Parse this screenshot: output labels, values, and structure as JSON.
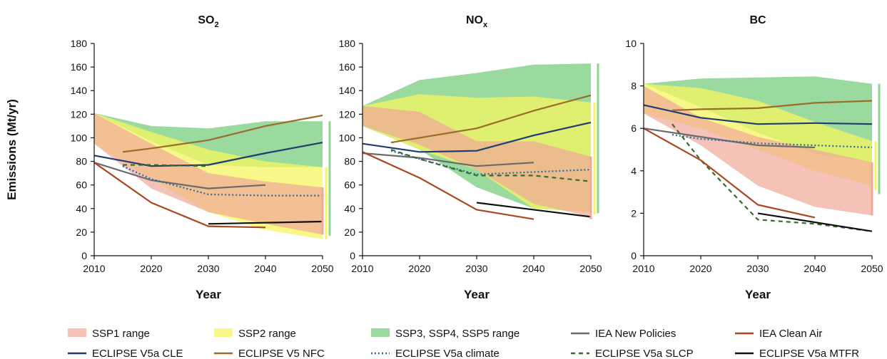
{
  "figure": {
    "ylabel": "Emissions (Mt/yr)",
    "xlabel": "Year"
  },
  "legend": [
    {
      "key": "ssp1",
      "label": "SSP1 range",
      "kind": "patch",
      "color": "#f0a898"
    },
    {
      "key": "ssp2",
      "label": "SSP2 range",
      "kind": "patch",
      "color": "#f5f560"
    },
    {
      "key": "ssp345",
      "label": "SSP3, SSP4, SSP5 range",
      "kind": "patch",
      "color": "#8fd694"
    },
    {
      "key": "iea_np",
      "label": "IEA New Policies",
      "kind": "line",
      "color": "#6b6b6b",
      "dash": "solid"
    },
    {
      "key": "iea_ca",
      "label": "IEA Clean Air",
      "kind": "line",
      "color": "#a9471f",
      "dash": "solid"
    },
    {
      "key": "clE",
      "label": "ECLIPSE V5a CLE",
      "kind": "line",
      "color": "#1f3d73",
      "dash": "solid"
    },
    {
      "key": "nfc",
      "label": "ECLIPSE V5 NFC",
      "kind": "line",
      "color": "#9a6d2a",
      "dash": "solid"
    },
    {
      "key": "climate",
      "label": "ECLIPSE V5a climate",
      "kind": "line",
      "color": "#2b6aa0",
      "dash": "dotted"
    },
    {
      "key": "slcp",
      "label": "ECLIPSE V5a SLCP",
      "kind": "line",
      "color": "#3a6b2c",
      "dash": "dashed"
    },
    {
      "key": "mtfr",
      "label": "ECLIPSE V5a MTFR",
      "kind": "line",
      "color": "#111111",
      "dash": "solid"
    }
  ],
  "chart_data": [
    {
      "type": "line",
      "title_main": "SO",
      "title_sub": "2",
      "xlim": [
        2010,
        2050
      ],
      "ylim": [
        0,
        180
      ],
      "xticks": [
        2010,
        2020,
        2030,
        2040,
        2050
      ],
      "yticks": [
        0,
        20,
        40,
        60,
        80,
        100,
        120,
        140,
        160,
        180
      ],
      "bands": [
        {
          "key": "ssp345",
          "x": [
            2010,
            2020,
            2030,
            2040,
            2050
          ],
          "upper": [
            121,
            110,
            108,
            114,
            114
          ],
          "lower": [
            121,
            97,
            77,
            75,
            75
          ]
        },
        {
          "key": "ssp2",
          "x": [
            2010,
            2020,
            2030,
            2040,
            2050
          ],
          "upper": [
            121,
            105,
            90,
            80,
            75
          ],
          "lower": [
            95,
            65,
            37,
            22,
            14
          ]
        },
        {
          "key": "ssp1",
          "x": [
            2010,
            2020,
            2030,
            2040,
            2050
          ],
          "upper": [
            121,
            95,
            70,
            63,
            58
          ],
          "lower": [
            95,
            57,
            37,
            27,
            18
          ]
        }
      ],
      "range_bars": [
        {
          "key": "ssp345",
          "top": 114,
          "bottom": 17
        },
        {
          "key": "ssp2",
          "top": 75,
          "bottom": 14
        },
        {
          "key": "ssp1",
          "top": 58,
          "bottom": 18
        }
      ],
      "series": [
        {
          "key": "clE",
          "x": [
            2010,
            2020,
            2030,
            2040,
            2050
          ],
          "y": [
            85,
            76,
            77,
            87,
            96
          ]
        },
        {
          "key": "nfc",
          "x": [
            2015,
            2020,
            2030,
            2040,
            2050
          ],
          "y": [
            88,
            91,
            98,
            110,
            119
          ]
        },
        {
          "key": "iea_np",
          "x": [
            2010,
            2020,
            2030,
            2040
          ],
          "y": [
            79,
            64,
            57,
            60
          ]
        },
        {
          "key": "climate",
          "x": [
            2015,
            2020,
            2030,
            2040,
            2050
          ],
          "y": [
            76,
            65,
            52,
            51,
            51
          ]
        },
        {
          "key": "slcp",
          "x": [
            2015,
            2020,
            2030
          ],
          "y": [
            77,
            77,
            76
          ]
        },
        {
          "key": "iea_ca",
          "x": [
            2010,
            2020,
            2030,
            2040
          ],
          "y": [
            79,
            45,
            25,
            24
          ]
        },
        {
          "key": "mtfr",
          "x": [
            2030,
            2050
          ],
          "y": [
            27,
            29
          ]
        }
      ]
    },
    {
      "type": "line",
      "title_main": "NO",
      "title_sub": "x",
      "xlim": [
        2010,
        2050
      ],
      "ylim": [
        0,
        180
      ],
      "xticks": [
        2010,
        2020,
        2030,
        2040,
        2050
      ],
      "yticks": [
        0,
        20,
        40,
        60,
        80,
        100,
        120,
        140,
        160,
        180
      ],
      "bands": [
        {
          "key": "ssp345",
          "x": [
            2010,
            2020,
            2030,
            2040,
            2050
          ],
          "upper": [
            127,
            149,
            155,
            162,
            163
          ],
          "lower": [
            110,
            90,
            58,
            40,
            37
          ]
        },
        {
          "key": "ssp2",
          "x": [
            2010,
            2020,
            2030,
            2040,
            2050
          ],
          "upper": [
            127,
            137,
            134,
            135,
            130
          ],
          "lower": [
            110,
            90,
            73,
            40,
            37
          ]
        },
        {
          "key": "ssp1",
          "x": [
            2010,
            2020,
            2030,
            2040,
            2050
          ],
          "upper": [
            127,
            122,
            97,
            97,
            84
          ],
          "lower": [
            110,
            94,
            73,
            44,
            33
          ]
        }
      ],
      "range_bars": [
        {
          "key": "ssp345",
          "top": 163,
          "bottom": 36
        },
        {
          "key": "ssp2",
          "top": 130,
          "bottom": 35
        },
        {
          "key": "ssp1",
          "top": 84,
          "bottom": 31
        }
      ],
      "series": [
        {
          "key": "clE",
          "x": [
            2010,
            2020,
            2030,
            2040,
            2050
          ],
          "y": [
            95,
            88,
            89,
            102,
            113
          ]
        },
        {
          "key": "nfc",
          "x": [
            2015,
            2020,
            2030,
            2040,
            2050
          ],
          "y": [
            96,
            100,
            108,
            123,
            136
          ]
        },
        {
          "key": "iea_np",
          "x": [
            2010,
            2020,
            2030,
            2040
          ],
          "y": [
            87,
            83,
            76,
            79
          ]
        },
        {
          "key": "climate",
          "x": [
            2015,
            2020,
            2030,
            2040,
            2050
          ],
          "y": [
            89,
            82,
            69,
            71,
            73
          ]
        },
        {
          "key": "slcp",
          "x": [
            2015,
            2020,
            2030,
            2040,
            2050
          ],
          "y": [
            90,
            82,
            68,
            68,
            63
          ]
        },
        {
          "key": "iea_ca",
          "x": [
            2010,
            2020,
            2030,
            2040
          ],
          "y": [
            88,
            66,
            39,
            31
          ]
        },
        {
          "key": "mtfr",
          "x": [
            2030,
            2050
          ],
          "y": [
            45,
            33
          ]
        }
      ]
    },
    {
      "type": "line",
      "title_main": "BC",
      "title_sub": "",
      "xlim": [
        2010,
        2050
      ],
      "ylim": [
        0,
        10
      ],
      "xticks": [
        2010,
        2020,
        2030,
        2040,
        2050
      ],
      "yticks": [
        0,
        2,
        4,
        6,
        8,
        10
      ],
      "bands": [
        {
          "key": "ssp345",
          "x": [
            2010,
            2020,
            2030,
            2040,
            2050
          ],
          "upper": [
            8.1,
            8.35,
            8.4,
            8.45,
            8.1
          ],
          "lower": [
            8.1,
            7.0,
            5.8,
            4.8,
            4.4
          ]
        },
        {
          "key": "ssp2",
          "x": [
            2010,
            2020,
            2030,
            2040,
            2050
          ],
          "upper": [
            8.1,
            7.9,
            7.3,
            6.3,
            5.4
          ],
          "lower": [
            6.7,
            6.0,
            5.0,
            4.0,
            3.3
          ]
        },
        {
          "key": "ssp1",
          "x": [
            2010,
            2020,
            2030,
            2040,
            2050
          ],
          "upper": [
            8.0,
            6.5,
            5.6,
            5.0,
            4.4
          ],
          "lower": [
            6.7,
            5.2,
            3.3,
            2.3,
            1.9
          ]
        }
      ],
      "range_bars": [
        {
          "key": "ssp345",
          "top": 8.1,
          "bottom": 2.9
        },
        {
          "key": "ssp2",
          "top": 5.4,
          "bottom": 3.1
        },
        {
          "key": "ssp1",
          "top": 4.4,
          "bottom": 1.9
        }
      ],
      "series": [
        {
          "key": "clE",
          "x": [
            2010,
            2020,
            2030,
            2040,
            2050
          ],
          "y": [
            7.1,
            6.5,
            6.2,
            6.25,
            6.2
          ]
        },
        {
          "key": "nfc",
          "x": [
            2015,
            2020,
            2030,
            2040,
            2050
          ],
          "y": [
            6.85,
            6.9,
            6.95,
            7.2,
            7.3
          ]
        },
        {
          "key": "iea_np",
          "x": [
            2010,
            2020,
            2030,
            2040
          ],
          "y": [
            6.0,
            5.6,
            5.2,
            5.1
          ]
        },
        {
          "key": "climate",
          "x": [
            2015,
            2020,
            2030,
            2040,
            2050
          ],
          "y": [
            5.7,
            5.5,
            5.3,
            5.2,
            5.1
          ]
        },
        {
          "key": "slcp",
          "x": [
            2015,
            2020,
            2030,
            2040,
            2050
          ],
          "y": [
            6.2,
            4.5,
            1.7,
            1.5,
            1.15
          ]
        },
        {
          "key": "iea_ca",
          "x": [
            2010,
            2020,
            2030,
            2040
          ],
          "y": [
            6.0,
            4.5,
            2.4,
            1.8
          ]
        },
        {
          "key": "mtfr",
          "x": [
            2030,
            2050
          ],
          "y": [
            2.0,
            1.15
          ]
        }
      ]
    }
  ]
}
